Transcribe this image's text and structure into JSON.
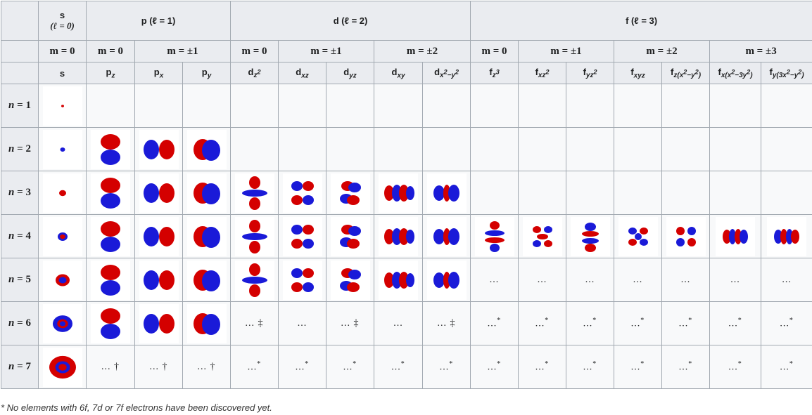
{
  "header": {
    "s": "s",
    "s_l": "(ℓ = 0)",
    "p": "p (ℓ = 1)",
    "d": "d (ℓ = 2)",
    "f": "f (ℓ = 3)"
  },
  "m_row": [
    "m = 0",
    "m = 0",
    "m = ±1",
    "m = 0",
    "m = ±1",
    "m = ±2",
    "m = 0",
    "m = ±1",
    "m = ±2",
    "m = ±3"
  ],
  "rows": [
    "n = 1",
    "n = 2",
    "n = 3",
    "n = 4",
    "n = 5",
    "n = 6",
    "n = 7"
  ],
  "ellipsis": "...",
  "footnote": "* No elements with 6f, 7d or 7f electrons have been discovered yet.",
  "colors": {
    "positive_lobe": "#d40000",
    "negative_lobe": "#1a1ad8"
  },
  "icons": {
    "orbital": "orbital-lobe-icon"
  }
}
